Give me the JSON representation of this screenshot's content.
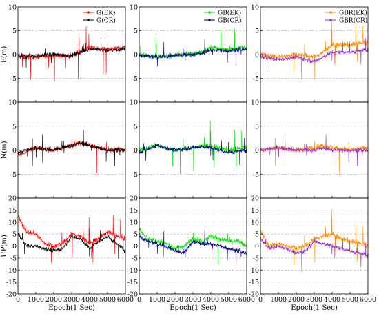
{
  "chart_data": {
    "type": "line",
    "grid": {
      "style": "dashed",
      "direction": "horizontal"
    },
    "legend_placement": "top-right",
    "x_axis": {
      "label": "Epoch(1 Sec)",
      "range": [
        0,
        6000
      ],
      "ticks": [
        0,
        1000,
        2000,
        3000,
        4000,
        5000,
        6000
      ],
      "tick_labels": [
        "0",
        "1000",
        "2000",
        "3000",
        "4000",
        "5000",
        "6000"
      ]
    },
    "rows": [
      {
        "ylabel": "E(m)",
        "ylim": [
          -10,
          10
        ],
        "ticks": [
          10,
          5,
          0,
          -5
        ],
        "tick_labels": [
          "10",
          "5",
          "0",
          "-5"
        ]
      },
      {
        "ylabel": "N(m)",
        "ylim": [
          -10,
          10
        ],
        "ticks": [
          10,
          5,
          0,
          -5
        ],
        "tick_labels": [
          "10",
          "5",
          "0",
          "-5"
        ]
      },
      {
        "ylabel": "UP(m)",
        "ylim": [
          -20,
          20
        ],
        "ticks": [
          20,
          15,
          10,
          5,
          0,
          -5,
          -10,
          -15,
          -20
        ],
        "tick_labels": [
          "20",
          "15",
          "10",
          "5",
          "0",
          "-5",
          "-10",
          "-15",
          "-20"
        ]
      }
    ],
    "columns": [
      {
        "series": [
          {
            "name": "G(EK)",
            "color": "#ff0000"
          },
          {
            "name": "G(CR)",
            "color": "#000000"
          }
        ]
      },
      {
        "series": [
          {
            "name": "GB(EK)",
            "color": "#00e000"
          },
          {
            "name": "GB(CR)",
            "color": "#00008b"
          }
        ]
      },
      {
        "series": [
          {
            "name": "GBR(EK)",
            "color": "#ff8c00"
          },
          {
            "name": "GBR(CR)",
            "color": "#9932cc"
          }
        ]
      }
    ],
    "trends": {
      "E": {
        "x": [
          0,
          1000,
          2000,
          3000,
          3500,
          4000,
          5000,
          6000
        ],
        "values": [
          [
            [
              -0.5,
              -0.5,
              -0.2,
              -0.3,
              0.5,
              1.5,
              1.0,
              1.5
            ],
            [
              -0.3,
              -0.3,
              0.0,
              -0.2,
              0.5,
              1.2,
              0.8,
              1.2
            ]
          ],
          [
            [
              0.0,
              -0.5,
              -0.2,
              0.2,
              0.5,
              1.5,
              1.0,
              1.5
            ],
            [
              -0.2,
              -0.5,
              -0.2,
              0.0,
              0.3,
              1.0,
              0.8,
              1.2
            ]
          ],
          [
            [
              0.0,
              -0.5,
              0.0,
              -0.5,
              0.5,
              2.0,
              2.0,
              2.5
            ],
            [
              -0.5,
              -1.0,
              -0.5,
              -1.5,
              -0.5,
              0.5,
              0.5,
              1.0
            ]
          ]
        ]
      },
      "N": {
        "x": [
          0,
          1000,
          2000,
          3000,
          3500,
          4000,
          5000,
          6000
        ],
        "values": [
          [
            [
              -1.0,
              0.5,
              0.0,
              1.0,
              1.5,
              1.0,
              0.0,
              0.0
            ],
            [
              -0.5,
              0.5,
              0.0,
              1.0,
              1.5,
              1.0,
              0.0,
              0.0
            ]
          ],
          [
            [
              0.0,
              1.0,
              0.0,
              0.5,
              1.0,
              0.8,
              0.0,
              0.5
            ],
            [
              -0.5,
              1.0,
              0.0,
              0.5,
              0.8,
              0.5,
              -0.5,
              0.0
            ]
          ],
          [
            [
              0.0,
              0.5,
              0.0,
              0.5,
              1.0,
              0.5,
              0.0,
              0.5
            ],
            [
              0.0,
              0.5,
              0.0,
              0.0,
              0.5,
              0.0,
              0.0,
              0.0
            ]
          ]
        ]
      },
      "UP": {
        "x": [
          0,
          500,
          1000,
          1500,
          2000,
          2500,
          3000,
          3500,
          4000,
          4500,
          5000,
          5500,
          6000
        ],
        "values": [
          [
            [
              12,
              6,
              5,
              1,
              0,
              1,
              5,
              4,
              1,
              3,
              6,
              4,
              3
            ],
            [
              5,
              0,
              0,
              -1,
              -2,
              -1,
              4,
              3,
              -1,
              2,
              4,
              1,
              -2
            ]
          ],
          [
            [
              7,
              3,
              2,
              1,
              -1,
              0,
              3,
              2,
              4,
              3,
              2,
              2,
              0
            ],
            [
              4,
              2,
              1,
              0,
              -2,
              -3,
              2,
              1,
              1,
              0,
              -1,
              -2,
              -3
            ]
          ],
          [
            [
              6,
              0,
              1,
              0,
              -1,
              0,
              3,
              4,
              5,
              3,
              2,
              1,
              0
            ],
            [
              3,
              -1,
              0,
              -1,
              -3,
              -2,
              2,
              1,
              0,
              -1,
              -2,
              -3,
              -4
            ]
          ]
        ]
      }
    }
  }
}
